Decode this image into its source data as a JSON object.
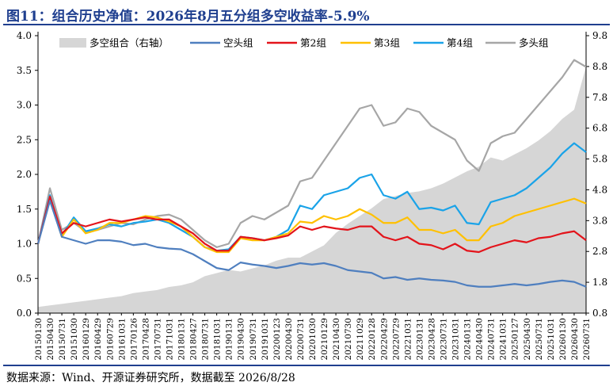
{
  "title": "图11：组合历史净值：2026年8月五分组多空收益率-5.9%",
  "source": "数据来源：Wind、开源证券研究所，数据截至 2026/8/28",
  "colors": {
    "area": "#d6d6d6",
    "short": "#4f7fbf",
    "g2": "#e3141b",
    "g3": "#ffc000",
    "g4": "#1aa3e8",
    "long": "#a6a6a6"
  },
  "chart_data": {
    "type": "line",
    "title": "",
    "x": [
      "20150130",
      "20150430",
      "20150731",
      "20151030",
      "20160129",
      "20160429",
      "20160729",
      "20161031",
      "20170126",
      "20170428",
      "20170731",
      "20171031",
      "20180131",
      "20180427",
      "20180731",
      "20181031",
      "20190131",
      "20190430",
      "20190731",
      "20191031",
      "20200123",
      "20200430",
      "20200731",
      "20201030",
      "20210129",
      "20210430",
      "20210730",
      "20211029",
      "20220128",
      "20220429",
      "20220729",
      "20221031",
      "20230131",
      "20230428",
      "20230731",
      "20231031",
      "20240131",
      "20240430",
      "20240731",
      "20241031",
      "20250127",
      "20250430",
      "20250731",
      "20251031",
      "20260130",
      "20260430",
      "20260731"
    ],
    "y_left": {
      "min": 0.0,
      "max": 4.0,
      "ticks": [
        "0.0",
        "0.5",
        "1.0",
        "1.5",
        "2.0",
        "2.5",
        "3.0",
        "3.5",
        "4.0"
      ]
    },
    "y_right": {
      "min": 0.8,
      "max": 9.8,
      "ticks": [
        "0.8",
        "1.8",
        "2.8",
        "3.8",
        "4.8",
        "5.8",
        "6.8",
        "7.8",
        "8.8",
        "9.8"
      ]
    },
    "legend_position": "top",
    "series": [
      {
        "name": "多空组合（右轴）",
        "type": "area",
        "axis": "right",
        "color_key": "area",
        "values": [
          1.0,
          1.05,
          1.1,
          1.15,
          1.2,
          1.25,
          1.3,
          1.35,
          1.45,
          1.5,
          1.55,
          1.65,
          1.7,
          1.8,
          2.0,
          2.1,
          2.2,
          2.15,
          2.25,
          2.35,
          2.5,
          2.6,
          2.6,
          2.8,
          3.0,
          3.4,
          3.7,
          3.95,
          4.2,
          4.5,
          4.6,
          4.7,
          4.75,
          4.85,
          5.0,
          5.2,
          5.4,
          5.55,
          5.85,
          5.75,
          5.95,
          6.15,
          6.4,
          6.7,
          7.1,
          7.4,
          8.8
        ]
      },
      {
        "name": "空头组",
        "type": "line",
        "axis": "left",
        "color_key": "short",
        "values": [
          1.0,
          1.62,
          1.1,
          1.05,
          1.0,
          1.05,
          1.05,
          1.03,
          0.98,
          1.0,
          0.95,
          0.93,
          0.92,
          0.85,
          0.75,
          0.65,
          0.62,
          0.73,
          0.7,
          0.68,
          0.65,
          0.68,
          0.72,
          0.7,
          0.72,
          0.68,
          0.62,
          0.6,
          0.58,
          0.5,
          0.52,
          0.48,
          0.5,
          0.48,
          0.47,
          0.45,
          0.4,
          0.38,
          0.38,
          0.4,
          0.42,
          0.4,
          0.42,
          0.45,
          0.47,
          0.45,
          0.38
        ]
      },
      {
        "name": "第2组",
        "type": "line",
        "axis": "left",
        "color_key": "g2",
        "values": [
          1.0,
          1.68,
          1.15,
          1.3,
          1.25,
          1.3,
          1.35,
          1.32,
          1.35,
          1.38,
          1.35,
          1.35,
          1.25,
          1.15,
          1.0,
          0.9,
          0.9,
          1.1,
          1.08,
          1.05,
          1.08,
          1.12,
          1.25,
          1.2,
          1.25,
          1.22,
          1.2,
          1.25,
          1.25,
          1.1,
          1.05,
          1.1,
          1.0,
          0.98,
          0.92,
          1.0,
          0.9,
          0.88,
          0.95,
          1.0,
          1.05,
          1.02,
          1.08,
          1.1,
          1.15,
          1.18,
          1.05
        ]
      },
      {
        "name": "第3组",
        "type": "line",
        "axis": "left",
        "color_key": "g3",
        "values": [
          1.0,
          1.65,
          1.1,
          1.35,
          1.15,
          1.2,
          1.3,
          1.3,
          1.35,
          1.4,
          1.38,
          1.32,
          1.25,
          1.1,
          0.95,
          0.88,
          0.88,
          1.08,
          1.05,
          1.05,
          1.1,
          1.15,
          1.32,
          1.3,
          1.4,
          1.35,
          1.4,
          1.5,
          1.42,
          1.3,
          1.3,
          1.38,
          1.2,
          1.2,
          1.15,
          1.2,
          1.05,
          1.05,
          1.25,
          1.3,
          1.4,
          1.45,
          1.5,
          1.55,
          1.6,
          1.65,
          1.58
        ]
      },
      {
        "name": "第4组",
        "type": "line",
        "axis": "left",
        "color_key": "g4",
        "values": [
          1.0,
          1.7,
          1.12,
          1.38,
          1.18,
          1.22,
          1.28,
          1.25,
          1.3,
          1.32,
          1.35,
          1.3,
          1.2,
          1.1,
          0.95,
          0.9,
          0.92,
          1.1,
          1.08,
          1.05,
          1.1,
          1.2,
          1.55,
          1.5,
          1.7,
          1.75,
          1.8,
          1.95,
          2.0,
          1.7,
          1.65,
          1.75,
          1.5,
          1.52,
          1.48,
          1.55,
          1.3,
          1.28,
          1.6,
          1.65,
          1.7,
          1.8,
          1.95,
          2.1,
          2.3,
          2.45,
          2.32
        ]
      },
      {
        "name": "多头组",
        "type": "line",
        "axis": "left",
        "color_key": "long",
        "values": [
          1.0,
          1.8,
          1.2,
          1.3,
          1.18,
          1.2,
          1.25,
          1.3,
          1.28,
          1.35,
          1.4,
          1.42,
          1.35,
          1.2,
          1.05,
          0.95,
          1.0,
          1.3,
          1.4,
          1.35,
          1.45,
          1.55,
          1.9,
          1.95,
          2.2,
          2.45,
          2.7,
          2.95,
          3.0,
          2.7,
          2.75,
          2.95,
          2.9,
          2.7,
          2.6,
          2.5,
          2.2,
          2.05,
          2.45,
          2.55,
          2.6,
          2.8,
          3.0,
          3.2,
          3.4,
          3.65,
          3.55
        ]
      }
    ]
  }
}
